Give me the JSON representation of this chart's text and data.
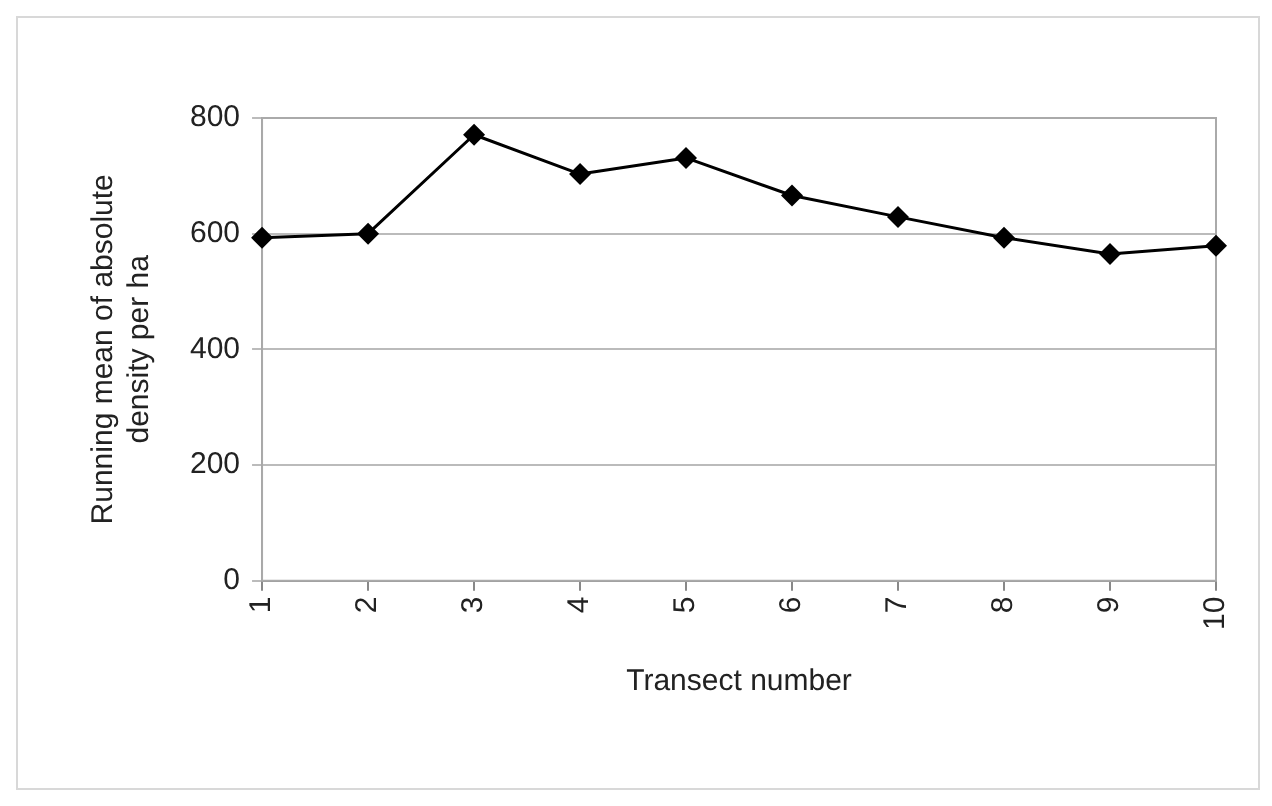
{
  "chart_data": {
    "type": "line",
    "xlabel": "Transect number",
    "ylabel": "Running mean of absolute density per ha",
    "categories": [
      "1",
      "2",
      "3",
      "4",
      "5",
      "6",
      "7",
      "8",
      "9",
      "10"
    ],
    "series": [
      {
        "color": "#000000",
        "values": [
          593,
          600,
          771,
          703,
          731,
          666,
          629,
          593,
          565,
          579
        ]
      }
    ],
    "ylim": [
      0,
      800
    ],
    "yticks": [
      0,
      200,
      400,
      600,
      800
    ],
    "grid": "y",
    "legend": false,
    "marker": "diamond",
    "line_style": "solid"
  }
}
